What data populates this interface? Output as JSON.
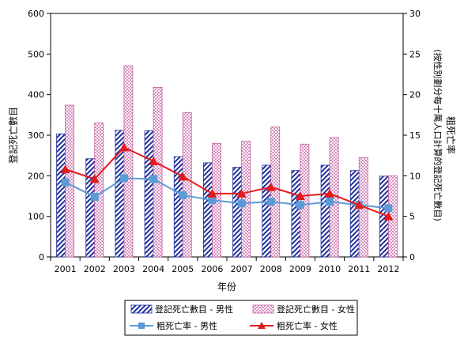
{
  "chart_data": {
    "type": "bar",
    "categories": [
      "2001",
      "2002",
      "2003",
      "2004",
      "2005",
      "2006",
      "2007",
      "2008",
      "2009",
      "2010",
      "2011",
      "2012"
    ],
    "xlabel": "年份",
    "ylabel_left": "登記死亡數目",
    "ylabel_right": "粗死亡率",
    "ylabel_right_sub": "(按性別劃分每十萬人口計算的登記死亡數目)",
    "ylim_left": [
      0,
      600
    ],
    "yticks_left": [
      "0",
      "100",
      "200",
      "300",
      "400",
      "500",
      "600"
    ],
    "ylim_right": [
      0,
      30
    ],
    "yticks_right": [
      "0",
      "5",
      "10",
      "15",
      "20",
      "25",
      "30"
    ],
    "grid": false,
    "legend_position": "bottom",
    "bar_series": [
      {
        "name": "登記死亡數目 - 男性",
        "values": [
          303,
          242,
          312,
          311,
          247,
          232,
          221,
          226,
          213,
          226,
          213,
          199
        ],
        "color": "#1f2f9a",
        "pattern": "diagonal-stripes"
      },
      {
        "name": "登記死亡數目 - 女性",
        "values": [
          374,
          330,
          471,
          418,
          356,
          280,
          285,
          320,
          278,
          294,
          245,
          200
        ],
        "color": "#c0609a",
        "pattern": "pink-checker"
      }
    ],
    "line_series": [
      {
        "name": "粗死亡率 - 男性",
        "values": [
          9.2,
          7.4,
          9.7,
          9.6,
          7.6,
          7.0,
          6.6,
          6.8,
          6.4,
          6.8,
          6.4,
          6.0
        ],
        "color": "#5b9bd5",
        "marker": "square"
      },
      {
        "name": "粗死亡率 - 女性",
        "values": [
          10.8,
          9.6,
          13.5,
          11.8,
          9.9,
          7.8,
          7.8,
          8.6,
          7.5,
          7.8,
          6.4,
          5.0
        ],
        "color": "#e41a1c",
        "marker": "triangle"
      }
    ]
  }
}
